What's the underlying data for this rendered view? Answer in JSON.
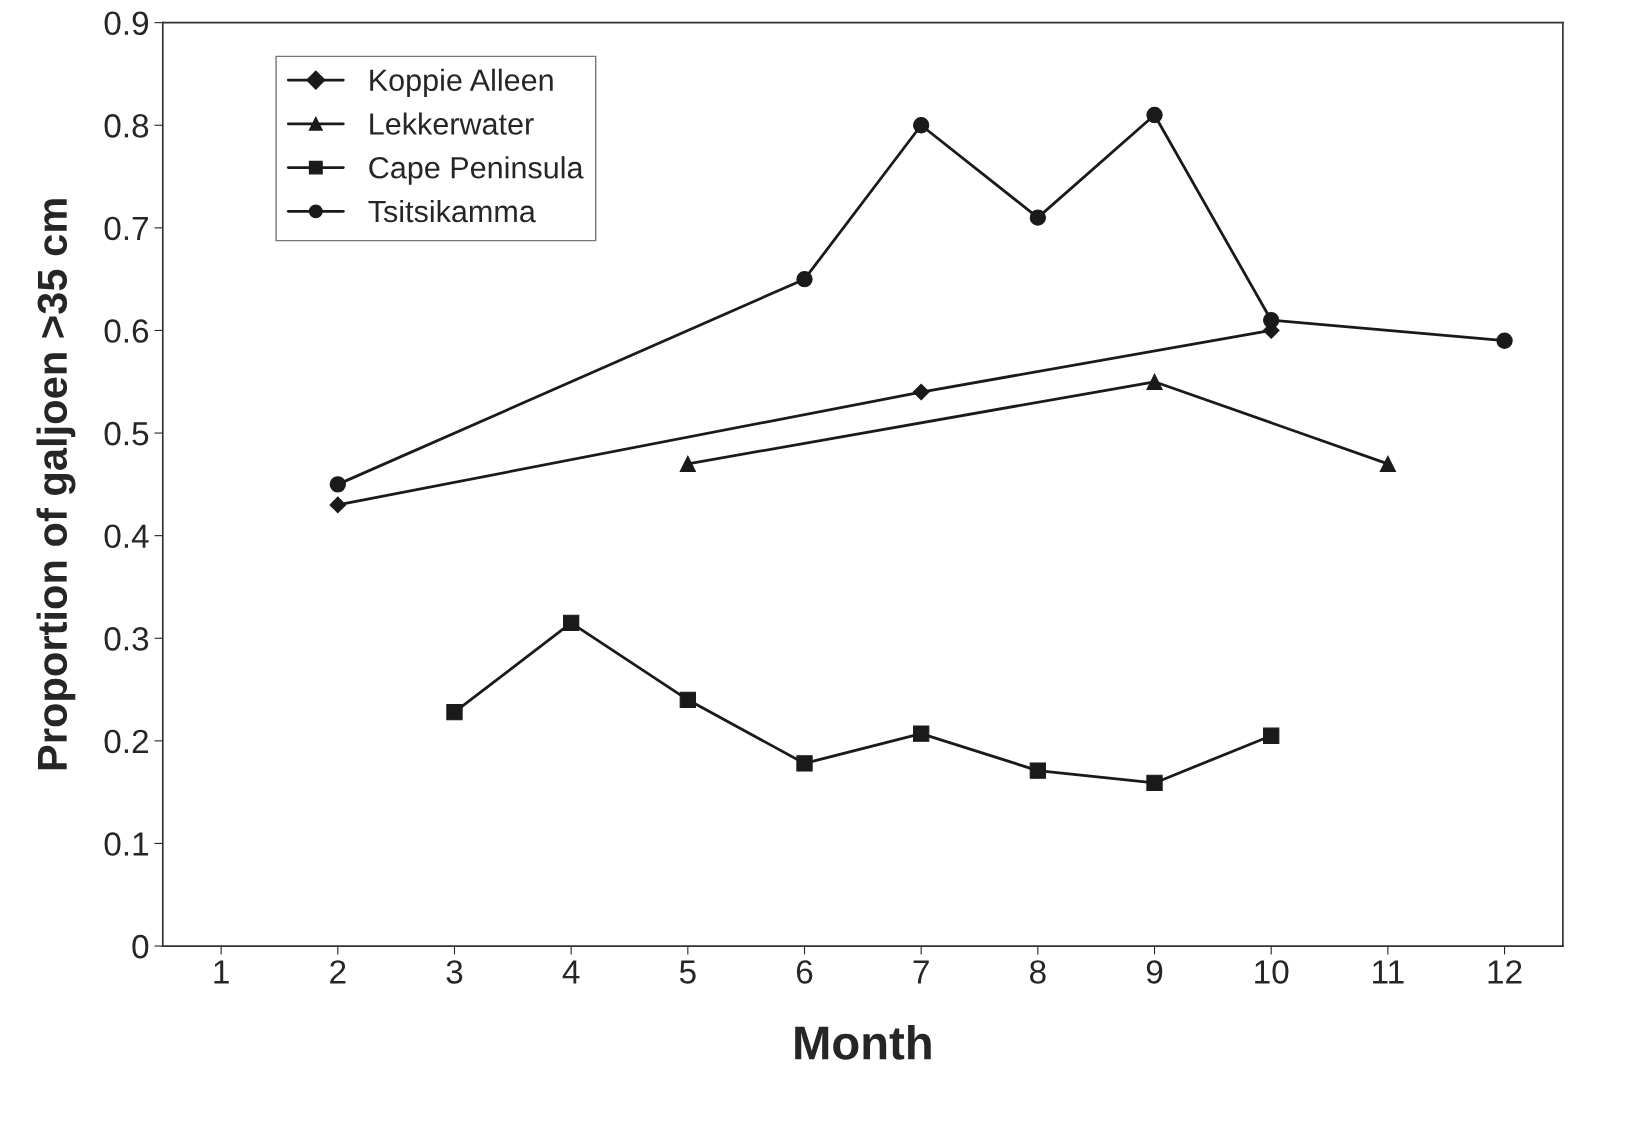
{
  "chart_data": {
    "type": "line",
    "xlabel": "Month",
    "ylabel": "Proportion of galjoen >35 cm",
    "xlim": [
      0.5,
      12.5
    ],
    "xticks": [
      1,
      2,
      3,
      4,
      5,
      6,
      7,
      8,
      9,
      10,
      11,
      12
    ],
    "ylim": [
      0,
      0.9
    ],
    "yticks": [
      0,
      0.1,
      0.2,
      0.3,
      0.4,
      0.5,
      0.6,
      0.7,
      0.8,
      0.9
    ],
    "grid": false,
    "legend": "top left",
    "series": [
      {
        "name": "Koppie Alleen",
        "color": "#1a1a1a",
        "marker": "diamond",
        "x": [
          2,
          7,
          10
        ],
        "values": [
          0.43,
          0.54,
          0.6
        ]
      },
      {
        "name": "Lekkerwater",
        "color": "#1a1a1a",
        "marker": "triangle",
        "x": [
          5,
          9,
          11
        ],
        "values": [
          0.47,
          0.55,
          0.47
        ]
      },
      {
        "name": "Cape Peninsula",
        "color": "#1a1a1a",
        "marker": "square",
        "x": [
          3,
          4,
          5,
          6,
          7,
          8,
          9,
          10
        ],
        "values": [
          0.228,
          0.315,
          0.24,
          0.178,
          0.207,
          0.171,
          0.159,
          0.205
        ]
      },
      {
        "name": "Tsitsikamma",
        "color": "#1a1a1a",
        "marker": "circle",
        "x": [
          2,
          6,
          7,
          8,
          9,
          10,
          12
        ],
        "values": [
          0.45,
          0.65,
          0.8,
          0.71,
          0.81,
          0.61,
          0.59
        ]
      }
    ]
  }
}
